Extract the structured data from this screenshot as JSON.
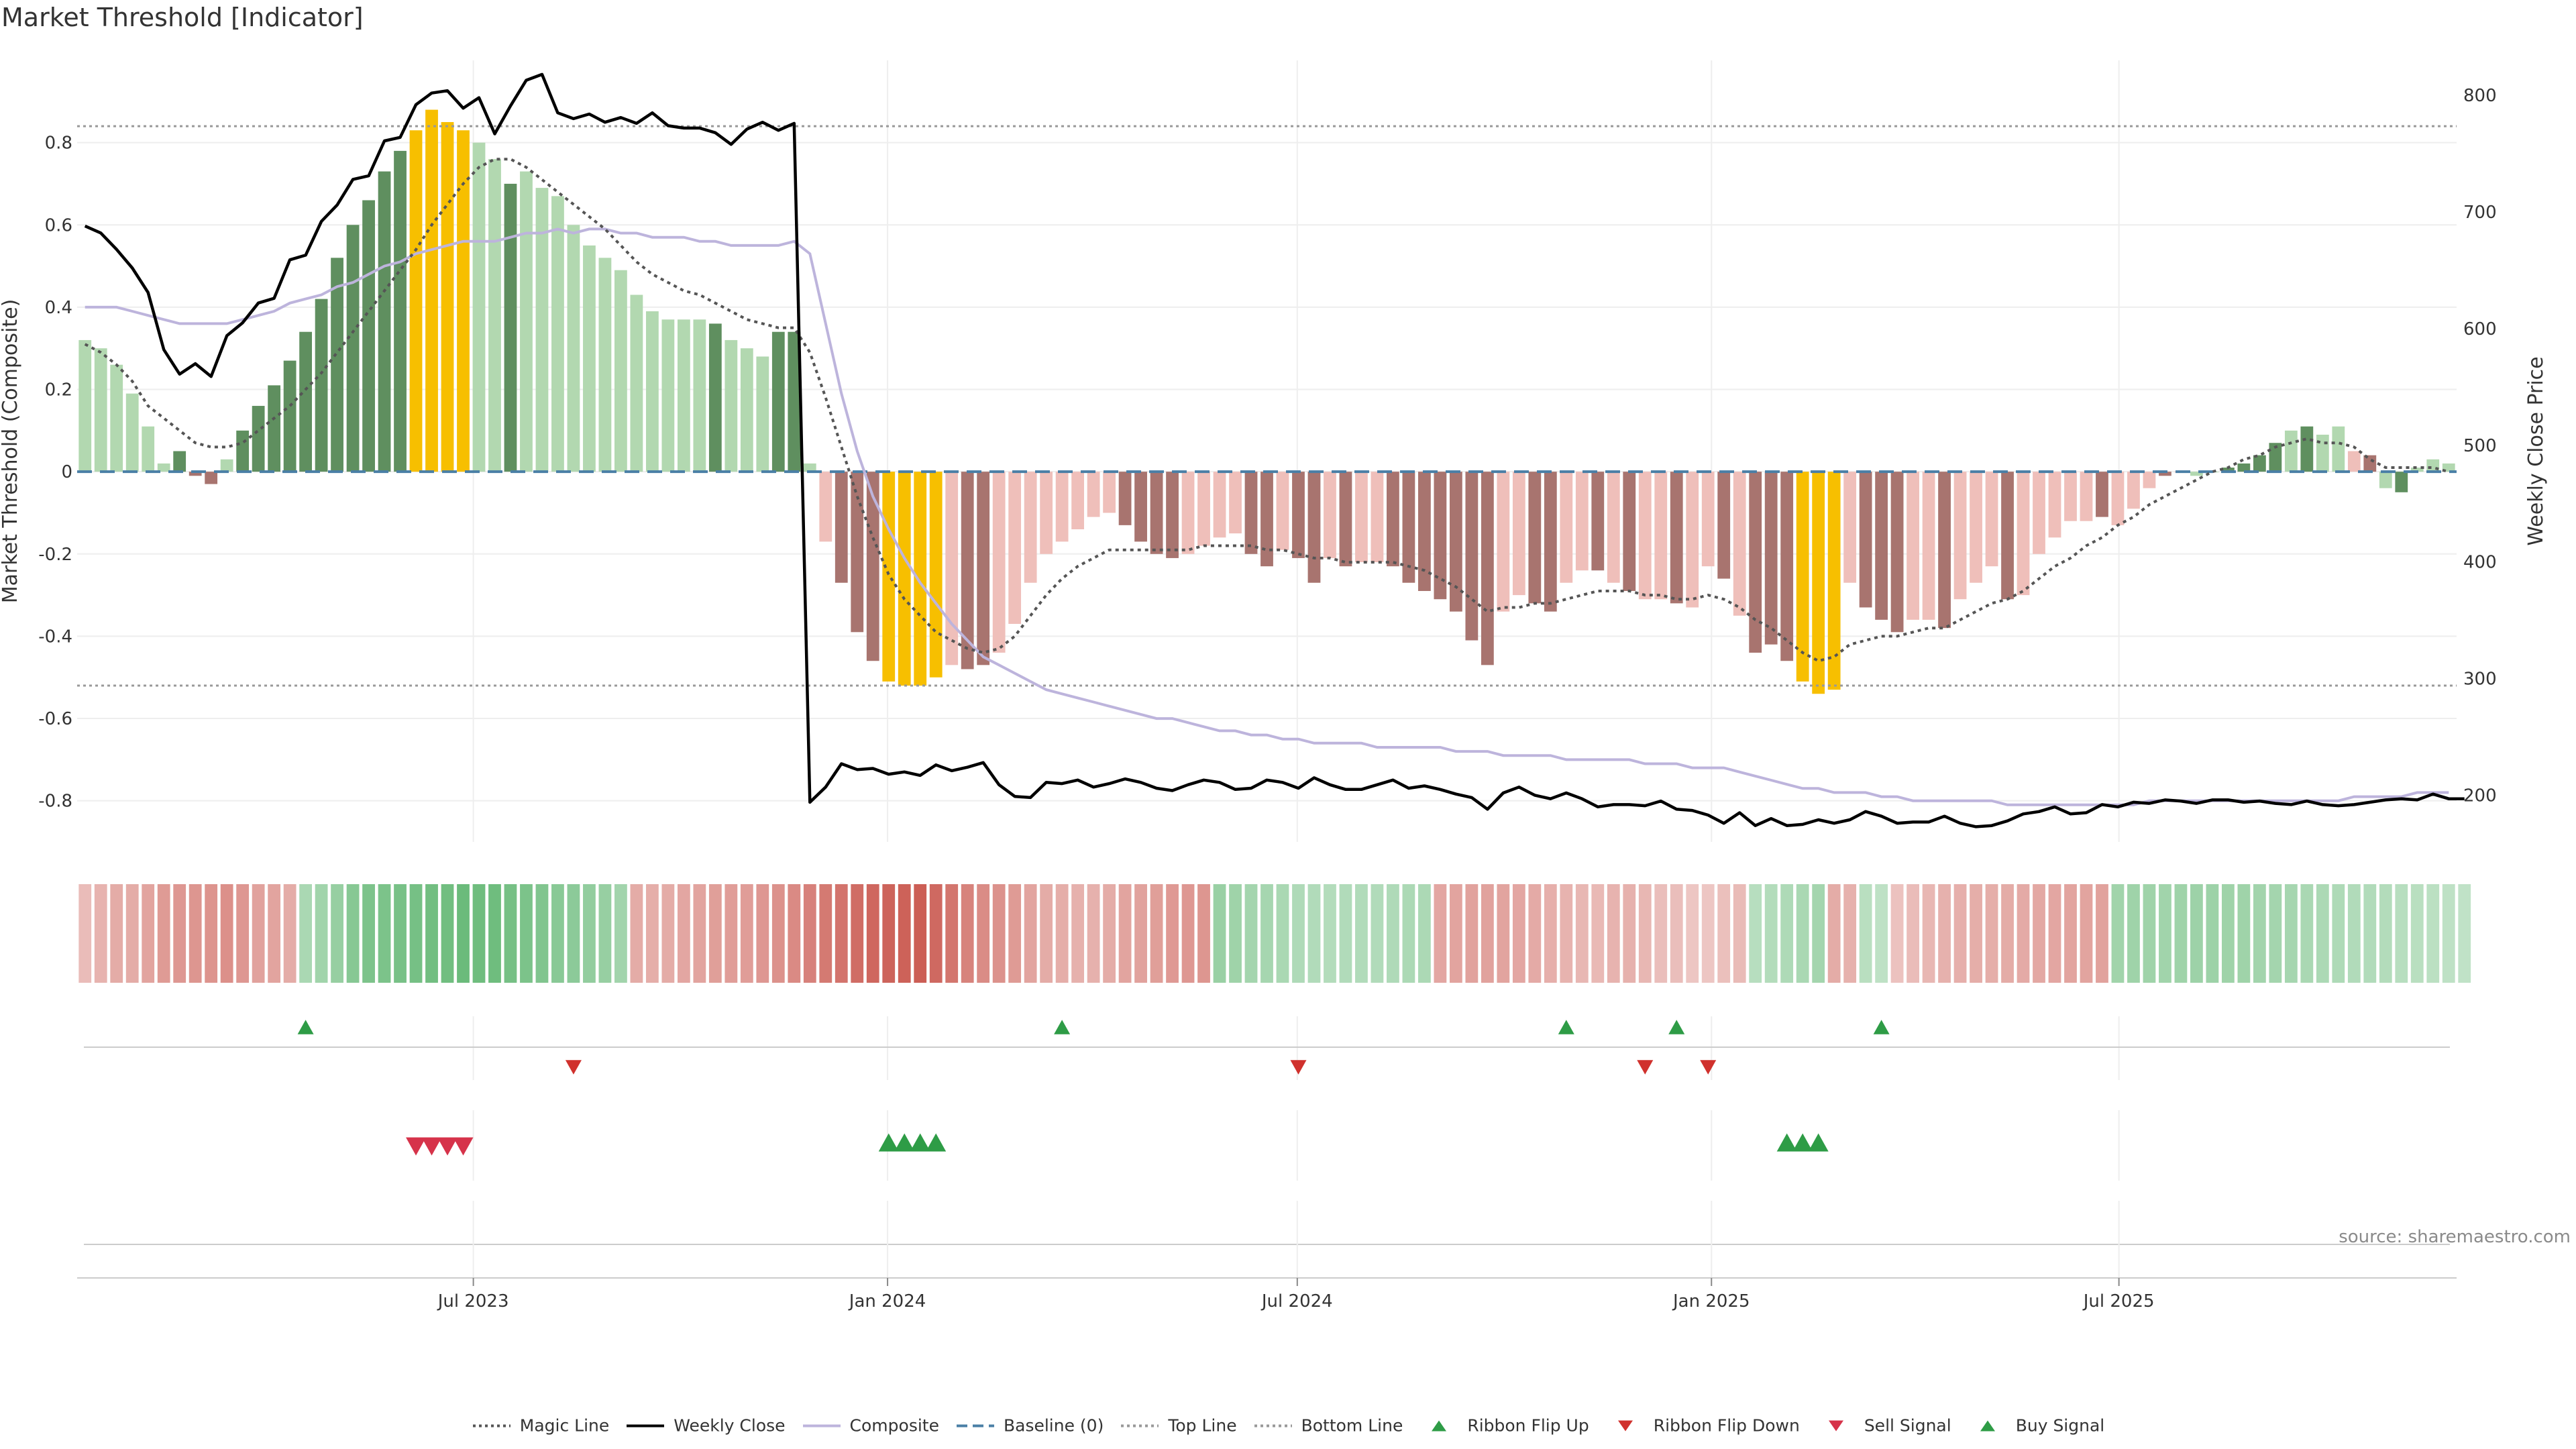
{
  "title": "Market Threshold [Indicator]",
  "source": "source: sharemaestro.com",
  "colors": {
    "positive_bar": "#5f8f5f",
    "positive_bar_light": "#b2d8b0",
    "negative_bar": "#a8746f",
    "negative_bar_light": "#efbfba",
    "extreme_bar": "#f7bf00",
    "magic_line": "#555555",
    "weekly_close": "#000000",
    "composite": "#bdb4dc",
    "baseline": "#4a7fa6",
    "threshold_line": "#999999",
    "ribbon_up": "#2e9c46",
    "ribbon_down": "#d0312d",
    "buy_signal": "#2e9c46",
    "sell_signal": "#d6334a"
  },
  "chart_data": {
    "type": "bar",
    "x_start": "2023-01-06",
    "x_frequency": "weekly",
    "xticks": [
      "Jul 2023",
      "Jan 2024",
      "Jul 2024",
      "Jan 2025",
      "Jul 2025"
    ],
    "ylabel": "Market Threshold (Composite)",
    "y2label": "Weekly Close Price",
    "ylim": [
      -0.9,
      1.0
    ],
    "y2lim": [
      160,
      830
    ],
    "yticks": [
      -0.8,
      -0.6,
      -0.4,
      -0.2,
      0,
      0.2,
      0.4,
      0.6,
      0.8
    ],
    "y2ticks": [
      200,
      300,
      400,
      500,
      600,
      700,
      800
    ],
    "top_line": 0.84,
    "bottom_line": -0.52,
    "bars": [
      0.32,
      0.3,
      0.26,
      0.19,
      0.11,
      0.02,
      0.05,
      -0.01,
      -0.03,
      0.03,
      0.1,
      0.16,
      0.21,
      0.27,
      0.34,
      0.42,
      0.52,
      0.6,
      0.66,
      0.73,
      0.78,
      0.83,
      0.88,
      0.85,
      0.83,
      0.8,
      0.76,
      0.7,
      0.73,
      0.69,
      0.67,
      0.6,
      0.55,
      0.52,
      0.49,
      0.43,
      0.39,
      0.37,
      0.37,
      0.37,
      0.36,
      0.32,
      0.3,
      0.28,
      0.34,
      0.34,
      0.02,
      -0.17,
      -0.27,
      -0.39,
      -0.46,
      -0.51,
      -0.52,
      -0.52,
      -0.5,
      -0.47,
      -0.48,
      -0.47,
      -0.44,
      -0.37,
      -0.27,
      -0.2,
      -0.17,
      -0.14,
      -0.11,
      -0.1,
      -0.13,
      -0.17,
      -0.2,
      -0.21,
      -0.2,
      -0.18,
      -0.16,
      -0.15,
      -0.2,
      -0.23,
      -0.19,
      -0.21,
      -0.27,
      -0.21,
      -0.23,
      -0.22,
      -0.22,
      -0.23,
      -0.27,
      -0.29,
      -0.31,
      -0.34,
      -0.41,
      -0.47,
      -0.34,
      -0.3,
      -0.32,
      -0.34,
      -0.27,
      -0.24,
      -0.24,
      -0.27,
      -0.29,
      -0.31,
      -0.31,
      -0.32,
      -0.33,
      -0.23,
      -0.26,
      -0.35,
      -0.44,
      -0.42,
      -0.46,
      -0.51,
      -0.54,
      -0.53,
      -0.27,
      -0.33,
      -0.36,
      -0.39,
      -0.36,
      -0.36,
      -0.38,
      -0.31,
      -0.27,
      -0.23,
      -0.31,
      -0.3,
      -0.2,
      -0.16,
      -0.12,
      -0.12,
      -0.11,
      -0.13,
      -0.09,
      -0.04,
      -0.01,
      0.0,
      -0.01,
      0.0,
      0.01,
      0.02,
      0.04,
      0.07,
      0.1,
      0.11,
      0.09,
      0.11,
      0.05,
      0.04,
      -0.04,
      -0.05,
      0.01,
      0.03,
      0.02
    ],
    "bar_colors": [
      "L",
      "L",
      "L",
      "L",
      "L",
      "L",
      "P",
      "N",
      "N",
      "L",
      "P",
      "P",
      "P",
      "P",
      "P",
      "P",
      "P",
      "P",
      "P",
      "P",
      "P",
      "E",
      "E",
      "E",
      "E",
      "L",
      "L",
      "P",
      "L",
      "L",
      "L",
      "L",
      "L",
      "L",
      "L",
      "L",
      "L",
      "L",
      "L",
      "L",
      "P",
      "L",
      "L",
      "L",
      "P",
      "P",
      "L",
      "NL",
      "N",
      "N",
      "N",
      "E",
      "E",
      "E",
      "E",
      "NL",
      "N",
      "N",
      "NL",
      "NL",
      "NL",
      "NL",
      "NL",
      "NL",
      "NL",
      "NL",
      "N",
      "N",
      "N",
      "N",
      "NL",
      "NL",
      "NL",
      "NL",
      "N",
      "N",
      "NL",
      "N",
      "N",
      "NL",
      "N",
      "NL",
      "NL",
      "N",
      "N",
      "N",
      "N",
      "N",
      "N",
      "N",
      "NL",
      "NL",
      "N",
      "N",
      "NL",
      "NL",
      "N",
      "NL",
      "N",
      "NL",
      "NL",
      "N",
      "NL",
      "NL",
      "N",
      "NL",
      "N",
      "N",
      "N",
      "E",
      "E",
      "E",
      "NL",
      "N",
      "N",
      "N",
      "NL",
      "NL",
      "N",
      "NL",
      "NL",
      "NL",
      "N",
      "NL",
      "NL",
      "NL",
      "NL",
      "NL",
      "N",
      "NL",
      "NL",
      "NL",
      "N",
      "NL",
      "L",
      "L",
      "P",
      "P",
      "P",
      "P",
      "L",
      "P",
      "L",
      "L",
      "NL",
      "N",
      "L",
      "P",
      "L"
    ],
    "magic_line": [
      0.31,
      0.29,
      0.26,
      0.22,
      0.16,
      0.13,
      0.1,
      0.07,
      0.06,
      0.06,
      0.07,
      0.1,
      0.13,
      0.16,
      0.2,
      0.24,
      0.29,
      0.34,
      0.39,
      0.44,
      0.49,
      0.54,
      0.6,
      0.65,
      0.7,
      0.74,
      0.76,
      0.76,
      0.74,
      0.71,
      0.68,
      0.65,
      0.62,
      0.59,
      0.55,
      0.51,
      0.48,
      0.46,
      0.44,
      0.43,
      0.41,
      0.39,
      0.37,
      0.36,
      0.35,
      0.35,
      0.29,
      0.18,
      0.06,
      -0.06,
      -0.16,
      -0.25,
      -0.31,
      -0.35,
      -0.39,
      -0.41,
      -0.43,
      -0.44,
      -0.43,
      -0.4,
      -0.35,
      -0.3,
      -0.26,
      -0.23,
      -0.21,
      -0.19,
      -0.19,
      -0.19,
      -0.19,
      -0.19,
      -0.19,
      -0.18,
      -0.18,
      -0.18,
      -0.18,
      -0.19,
      -0.19,
      -0.2,
      -0.21,
      -0.21,
      -0.22,
      -0.22,
      -0.22,
      -0.22,
      -0.23,
      -0.24,
      -0.26,
      -0.28,
      -0.31,
      -0.34,
      -0.33,
      -0.33,
      -0.32,
      -0.32,
      -0.31,
      -0.3,
      -0.29,
      -0.29,
      -0.29,
      -0.3,
      -0.3,
      -0.31,
      -0.31,
      -0.3,
      -0.31,
      -0.33,
      -0.36,
      -0.38,
      -0.41,
      -0.44,
      -0.46,
      -0.45,
      -0.42,
      -0.41,
      -0.4,
      -0.4,
      -0.39,
      -0.38,
      -0.38,
      -0.36,
      -0.34,
      -0.32,
      -0.31,
      -0.29,
      -0.26,
      -0.23,
      -0.21,
      -0.18,
      -0.16,
      -0.13,
      -0.11,
      -0.08,
      -0.06,
      -0.04,
      -0.02,
      -0.0,
      0.01,
      0.03,
      0.04,
      0.06,
      0.07,
      0.08,
      0.07,
      0.07,
      0.06,
      0.03,
      0.01,
      0.01,
      0.01,
      0.01,
      0.0
    ],
    "composite": [
      0.4,
      0.4,
      0.4,
      0.39,
      0.38,
      0.37,
      0.36,
      0.36,
      0.36,
      0.36,
      0.37,
      0.38,
      0.39,
      0.41,
      0.42,
      0.43,
      0.45,
      0.46,
      0.48,
      0.5,
      0.51,
      0.53,
      0.54,
      0.55,
      0.56,
      0.56,
      0.56,
      0.57,
      0.58,
      0.58,
      0.59,
      0.58,
      0.59,
      0.59,
      0.58,
      0.58,
      0.57,
      0.57,
      0.57,
      0.56,
      0.56,
      0.55,
      0.55,
      0.55,
      0.55,
      0.56,
      0.53,
      0.36,
      0.19,
      0.05,
      -0.06,
      -0.14,
      -0.21,
      -0.27,
      -0.32,
      -0.37,
      -0.41,
      -0.45,
      -0.47,
      -0.49,
      -0.51,
      -0.53,
      -0.54,
      -0.55,
      -0.56,
      -0.57,
      -0.58,
      -0.59,
      -0.6,
      -0.6,
      -0.61,
      -0.62,
      -0.63,
      -0.63,
      -0.64,
      -0.64,
      -0.65,
      -0.65,
      -0.66,
      -0.66,
      -0.66,
      -0.66,
      -0.67,
      -0.67,
      -0.67,
      -0.67,
      -0.67,
      -0.68,
      -0.68,
      -0.68,
      -0.69,
      -0.69,
      -0.69,
      -0.69,
      -0.7,
      -0.7,
      -0.7,
      -0.7,
      -0.7,
      -0.71,
      -0.71,
      -0.71,
      -0.72,
      -0.72,
      -0.72,
      -0.73,
      -0.74,
      -0.75,
      -0.76,
      -0.77,
      -0.77,
      -0.78,
      -0.78,
      -0.78,
      -0.79,
      -0.79,
      -0.8,
      -0.8,
      -0.8,
      -0.8,
      -0.8,
      -0.8,
      -0.81,
      -0.81,
      -0.81,
      -0.81,
      -0.81,
      -0.81,
      -0.81,
      -0.81,
      -0.81,
      -0.8,
      -0.8,
      -0.8,
      -0.8,
      -0.8,
      -0.8,
      -0.8,
      -0.8,
      -0.8,
      -0.8,
      -0.8,
      -0.8,
      -0.8,
      -0.79,
      -0.79,
      -0.79,
      -0.79,
      -0.78,
      -0.78,
      -0.78
    ],
    "weekly_close": [
      688,
      682,
      668,
      652,
      631,
      582,
      561,
      570,
      559,
      594,
      605,
      622,
      626,
      659,
      663,
      692,
      706,
      728,
      731,
      761,
      764,
      792,
      802,
      804,
      789,
      798,
      767,
      791,
      813,
      818,
      785,
      780,
      784,
      777,
      781,
      776,
      785,
      774,
      772,
      772,
      768,
      758,
      771,
      777,
      770,
      776,
      194,
      207,
      227,
      222,
      223,
      218,
      220,
      217,
      226,
      221,
      224,
      228,
      209,
      199,
      198,
      211,
      210,
      213,
      207,
      210,
      214,
      211,
      206,
      204,
      209,
      213,
      211,
      205,
      206,
      213,
      211,
      206,
      215,
      209,
      205,
      205,
      209,
      213,
      206,
      208,
      205,
      201,
      198,
      188,
      202,
      207,
      200,
      197,
      202,
      197,
      190,
      192,
      192,
      191,
      195,
      188,
      187,
      183,
      176,
      185,
      174,
      180,
      174,
      175,
      179,
      176,
      179,
      186,
      182,
      176,
      177,
      177,
      182,
      176,
      173,
      174,
      178,
      184,
      186,
      190,
      184,
      185,
      192,
      190,
      194,
      193,
      196,
      195,
      193,
      196,
      196,
      194,
      195,
      193,
      192,
      195,
      192,
      191,
      192,
      194,
      196,
      197,
      196,
      201,
      197,
      197
    ],
    "ribbon": [
      0.18,
      0.24,
      0.29,
      0.3,
      0.34,
      0.41,
      0.43,
      0.45,
      0.46,
      0.49,
      0.43,
      0.36,
      0.35,
      0.29,
      0.31,
      0.37,
      0.43,
      0.55,
      0.61,
      0.63,
      0.65,
      0.67,
      0.69,
      0.71,
      0.74,
      0.72,
      0.72,
      0.67,
      0.63,
      0.59,
      0.54,
      0.51,
      0.48,
      0.44,
      0.36,
      0.3,
      0.28,
      0.3,
      0.33,
      0.35,
      0.38,
      0.4,
      0.4,
      0.44,
      0.48,
      0.53,
      0.59,
      0.64,
      0.68,
      0.73,
      0.77,
      0.79,
      0.81,
      0.83,
      0.76,
      0.67,
      0.58,
      0.51,
      0.47,
      0.41,
      0.34,
      0.3,
      0.28,
      0.25,
      0.26,
      0.3,
      0.34,
      0.36,
      0.38,
      0.42,
      0.44,
      0.45,
      0.42,
      0.38,
      0.35,
      0.33,
      0.31,
      0.27,
      0.25,
      0.24,
      0.25,
      0.26,
      0.25,
      0.27,
      0.29,
      0.3,
      0.33,
      0.35,
      0.36,
      0.36,
      0.34,
      0.33,
      0.31,
      0.27,
      0.24,
      0.22,
      0.21,
      0.24,
      0.26,
      0.22,
      0.17,
      0.17,
      0.12,
      0.12,
      0.15,
      0.19,
      0.22,
      0.24,
      0.28,
      0.31,
      0.34,
      0.3,
      0.25,
      0.2,
      0.17,
      0.14,
      0.18,
      0.22,
      0.25,
      0.27,
      0.28,
      0.28,
      0.3,
      0.31,
      0.32,
      0.33,
      0.35,
      0.35,
      0.36,
      0.37,
      0.39,
      0.38,
      0.37,
      0.38,
      0.4,
      0.4,
      0.39,
      0.38,
      0.36,
      0.35,
      0.33,
      0.31,
      0.3,
      0.28,
      0.26,
      0.25,
      0.24,
      0.22,
      0.21,
      0.19,
      0.17,
      0.16
    ],
    "ribbon_colors": [
      "r",
      "r",
      "r",
      "r",
      "r",
      "r",
      "r",
      "r",
      "r",
      "r",
      "r",
      "r",
      "r",
      "r",
      "g",
      "g",
      "g",
      "g",
      "g",
      "g",
      "g",
      "g",
      "g",
      "g",
      "g",
      "g",
      "g",
      "g",
      "g",
      "g",
      "g",
      "g",
      "g",
      "g",
      "g",
      "r",
      "r",
      "r",
      "r",
      "r",
      "r",
      "r",
      "r",
      "r",
      "r",
      "r",
      "r",
      "r",
      "r",
      "r",
      "r",
      "r",
      "r",
      "r",
      "r",
      "r",
      "r",
      "r",
      "r",
      "r",
      "r",
      "r",
      "r",
      "r",
      "r",
      "r",
      "r",
      "r",
      "r",
      "r",
      "r",
      "r",
      "g",
      "g",
      "g",
      "g",
      "g",
      "g",
      "g",
      "g",
      "g",
      "g",
      "g",
      "g",
      "g",
      "g",
      "r",
      "r",
      "r",
      "r",
      "r",
      "r",
      "r",
      "r",
      "r",
      "r",
      "r",
      "r",
      "r",
      "r",
      "r",
      "r",
      "r",
      "r",
      "r",
      "r",
      "g",
      "g",
      "g",
      "g",
      "g",
      "r",
      "r",
      "g",
      "g",
      "r",
      "r",
      "r",
      "r",
      "r",
      "r",
      "r",
      "r",
      "r",
      "r",
      "r",
      "r",
      "r",
      "r",
      "g",
      "g",
      "g",
      "g",
      "g",
      "g",
      "g",
      "g",
      "g",
      "g",
      "g",
      "g",
      "g",
      "g",
      "g",
      "g",
      "g",
      "g",
      "g",
      "g",
      "g",
      "g",
      "g",
      "g",
      "g",
      "g",
      "g",
      "g",
      "g",
      "g"
    ],
    "ribbon_flip_up": [
      14,
      62,
      94,
      101,
      114
    ],
    "ribbon_flip_down": [
      31,
      77,
      99,
      103
    ],
    "sell_signals": [
      21,
      22,
      23,
      24
    ],
    "buy_signals": [
      51,
      52,
      53,
      54,
      108,
      109,
      110
    ],
    "legend": [
      {
        "label": "Magic Line",
        "kind": "dotted-line",
        "color": "#555555"
      },
      {
        "label": "Weekly Close",
        "kind": "solid-line",
        "color": "#000000"
      },
      {
        "label": "Composite",
        "kind": "solid-line",
        "color": "#bdb4dc"
      },
      {
        "label": "Baseline (0)",
        "kind": "dashed-line",
        "color": "#4a7fa6"
      },
      {
        "label": "Top Line",
        "kind": "dotted-line",
        "color": "#999999"
      },
      {
        "label": "Bottom Line",
        "kind": "dotted-line",
        "color": "#999999"
      },
      {
        "label": "Ribbon Flip Up",
        "kind": "triangle-up",
        "color": "#2e9c46"
      },
      {
        "label": "Ribbon Flip Down",
        "kind": "triangle-down",
        "color": "#d0312d"
      },
      {
        "label": "Sell Signal",
        "kind": "triangle-down",
        "color": "#d6334a"
      },
      {
        "label": "Buy Signal",
        "kind": "triangle-up",
        "color": "#2e9c46"
      }
    ]
  }
}
